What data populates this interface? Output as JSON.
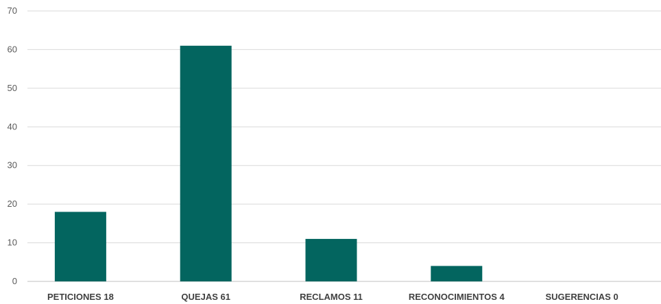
{
  "chart_data": {
    "type": "bar",
    "categories": [
      "PETICIONES 18",
      "QUEJAS 61",
      "RECLAMOS 11",
      "RECONOCIMIENTOS 4",
      "SUGERENCIAS 0"
    ],
    "values": [
      18,
      61,
      11,
      4,
      0
    ],
    "ylim": [
      0,
      70
    ],
    "yticks": [
      "0",
      "10",
      "20",
      "30",
      "40",
      "50",
      "60",
      "70"
    ],
    "grid": true,
    "legend": "none"
  },
  "colors": {
    "bar": "#03655f",
    "grid": "#d9d9d9",
    "axis": "#bfbfbf"
  }
}
